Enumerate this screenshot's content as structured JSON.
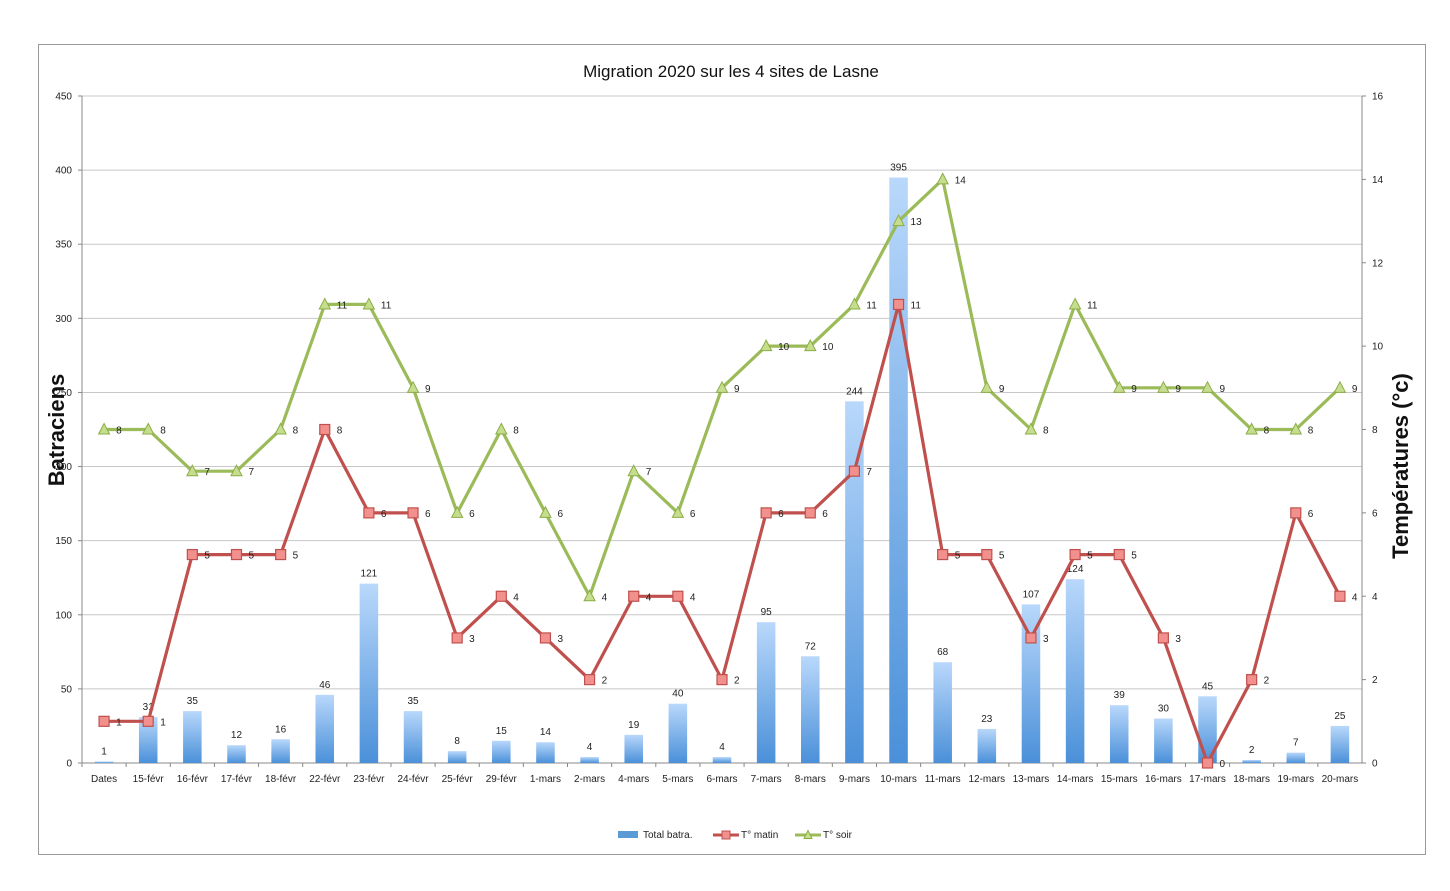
{
  "chart_data": {
    "type": "bar",
    "title": "Migration 2020 sur les 4 sites de Lasne",
    "ylabel_left": "Batraciens",
    "ylabel_right": "Températures (°c)",
    "ylim_left": [
      0,
      450
    ],
    "yticks_left": [
      "0",
      "50",
      "100",
      "150",
      "200",
      "250",
      "300",
      "350",
      "400",
      "450"
    ],
    "ylim_right": [
      0,
      16
    ],
    "yticks_right": [
      "0",
      "2",
      "4",
      "6",
      "8",
      "10",
      "12",
      "14",
      "16"
    ],
    "grid": true,
    "legend_position": "bottom",
    "categories": [
      "Dates",
      "15-févr",
      "16-févr",
      "17-févr",
      "18-févr",
      "22-févr",
      "23-févr",
      "24-févr",
      "25-févr",
      "29-févr",
      "1-mars",
      "2-mars",
      "4-mars",
      "5-mars",
      "6-mars",
      "7-mars",
      "8-mars",
      "9-mars",
      "10-mars",
      "11-mars",
      "12-mars",
      "13-mars",
      "14-mars",
      "15-mars",
      "16-mars",
      "17-mars",
      "18-mars",
      "19-mars",
      "20-mars"
    ],
    "series": [
      {
        "name": "Total batra.",
        "type": "bar",
        "axis": "left",
        "color": "#5b9bd5",
        "values": [
          1,
          31,
          35,
          12,
          16,
          46,
          121,
          35,
          8,
          15,
          14,
          4,
          19,
          40,
          4,
          95,
          72,
          244,
          395,
          68,
          23,
          107,
          124,
          39,
          30,
          45,
          2,
          7,
          25
        ]
      },
      {
        "name": "T° matin",
        "type": "line",
        "axis": "right",
        "color": "#c0504d",
        "values": [
          1,
          1,
          5,
          5,
          5,
          8,
          6,
          6,
          3,
          4,
          3,
          2,
          4,
          4,
          2,
          6,
          6,
          7,
          11,
          5,
          5,
          3,
          5,
          5,
          3,
          0,
          2,
          6,
          4
        ]
      },
      {
        "name": "T° soir",
        "type": "line",
        "axis": "right",
        "color": "#9bbb59",
        "values": [
          8,
          8,
          7,
          7,
          8,
          11,
          11,
          9,
          6,
          8,
          6,
          4,
          7,
          6,
          9,
          10,
          10,
          11,
          13,
          14,
          9,
          8,
          11,
          9,
          9,
          9,
          8,
          8,
          9
        ]
      }
    ]
  }
}
